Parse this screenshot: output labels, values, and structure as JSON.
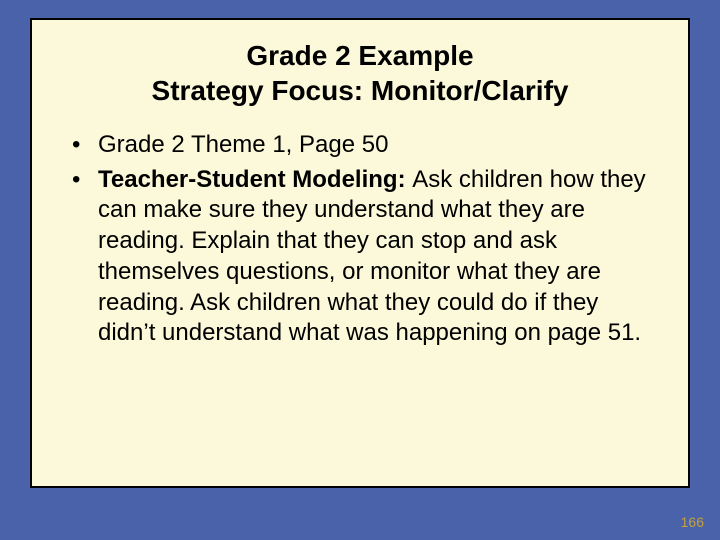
{
  "colors": {
    "slide_bg": "#4a62aa",
    "box_bg": "#fbf9d9",
    "box_border": "#000000",
    "text": "#000000",
    "pagenum": "#c6a03a"
  },
  "title": {
    "line1": "Grade 2 Example",
    "line2": "Strategy Focus: Monitor/Clarify"
  },
  "bullets": [
    {
      "bold": "",
      "text": "Grade 2 Theme 1, Page 50"
    },
    {
      "bold": "Teacher-Student Modeling: ",
      "text": "Ask children how they can make sure they understand what they are reading.  Explain that they can stop and ask themselves questions, or monitor what they are reading.  Ask children what they could do if they didn’t understand what was happening on page 51."
    }
  ],
  "page_number": "166"
}
